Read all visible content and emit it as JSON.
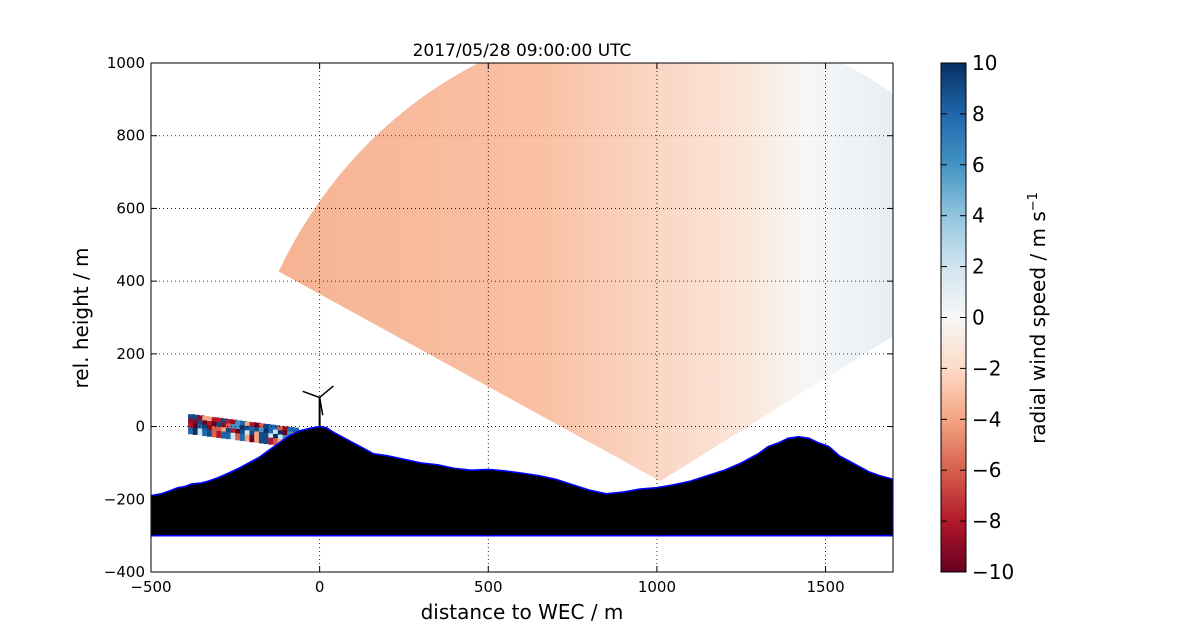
{
  "chart_data": {
    "type": "heatmap",
    "title": "2017/05/28 09:00:00 UTC",
    "xlabel": "distance to WEC / m",
    "ylabel": "rel. height / m",
    "xlim": [
      -500,
      1700
    ],
    "ylim": [
      -400,
      1000
    ],
    "xticks": [
      -500,
      0,
      500,
      1000,
      1500
    ],
    "yticks": [
      -400,
      -200,
      0,
      200,
      400,
      600,
      800,
      1000
    ],
    "grid": true,
    "colorbar": {
      "label": "radial wind speed / m s",
      "label_superscript": "−1",
      "range": [
        -10,
        10
      ],
      "ticks": [
        10,
        8,
        6,
        4,
        2,
        0,
        -2,
        -4,
        -6,
        -8,
        -10
      ],
      "colormap": "RdBu",
      "colors": [
        "#67001f",
        "#b2182b",
        "#d6604d",
        "#f4a582",
        "#fddbc7",
        "#f7f7f7",
        "#d1e5f0",
        "#92c5de",
        "#4393c3",
        "#2166ac",
        "#053061"
      ]
    },
    "scan": {
      "origin": [
        1010,
        -150
      ],
      "range_max": 1270,
      "azimuth_deg": [
        30,
        153
      ],
      "wind_near_wec": -3.5,
      "wind_far": 1.2,
      "noisy_low_band_x": [
        -390,
        -80
      ]
    },
    "terrain": {
      "color": "#000000",
      "outline_color": "#0000ff",
      "base": -300,
      "x": [
        -500,
        -470,
        -440,
        -420,
        -400,
        -380,
        -350,
        -330,
        -300,
        -270,
        -240,
        -210,
        -180,
        -150,
        -120,
        -90,
        -60,
        -30,
        0,
        20,
        40,
        70,
        100,
        130,
        160,
        200,
        250,
        300,
        350,
        400,
        450,
        500,
        550,
        600,
        650,
        700,
        750,
        800,
        850,
        900,
        950,
        1000,
        1050,
        1100,
        1150,
        1200,
        1250,
        1300,
        1330,
        1360,
        1390,
        1420,
        1450,
        1480,
        1510,
        1540,
        1570,
        1600,
        1630,
        1660,
        1700
      ],
      "y": [
        -190,
        -185,
        -175,
        -168,
        -165,
        -158,
        -155,
        -150,
        -140,
        -128,
        -115,
        -100,
        -85,
        -65,
        -45,
        -25,
        -12,
        -5,
        0,
        -3,
        -15,
        -30,
        -45,
        -60,
        -75,
        -80,
        -90,
        -100,
        -105,
        -115,
        -120,
        -118,
        -122,
        -128,
        -135,
        -145,
        -160,
        -175,
        -185,
        -180,
        -172,
        -168,
        -160,
        -150,
        -135,
        -120,
        -100,
        -75,
        -55,
        -45,
        -32,
        -28,
        -32,
        -45,
        -55,
        -80,
        -95,
        -110,
        -125,
        -135,
        -145
      ]
    },
    "wec": {
      "x": 0,
      "hub_height": 80
    }
  }
}
